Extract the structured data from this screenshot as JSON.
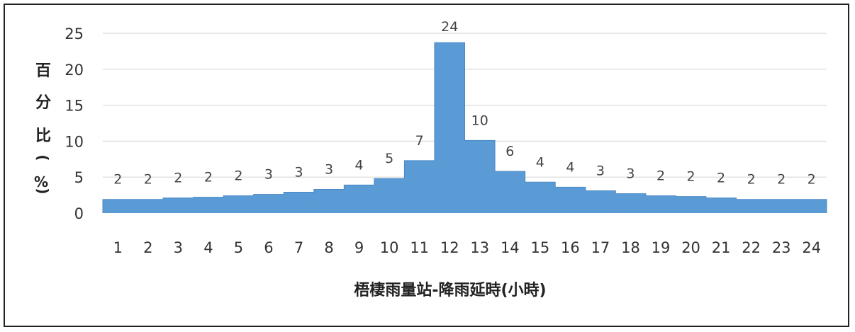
{
  "chart_data": {
    "type": "bar",
    "title": "",
    "xlabel": "梧棲雨量站-降雨延時(小時)",
    "ylabel": "百分比(%)",
    "ylabel_chars": [
      "百",
      "分",
      "比",
      "(",
      "%",
      ")"
    ],
    "categories": [
      "1",
      "2",
      "3",
      "4",
      "5",
      "6",
      "7",
      "8",
      "9",
      "10",
      "11",
      "12",
      "13",
      "14",
      "15",
      "16",
      "17",
      "18",
      "19",
      "20",
      "21",
      "22",
      "23",
      "24"
    ],
    "values": [
      1.9,
      1.9,
      2.1,
      2.2,
      2.4,
      2.6,
      2.9,
      3.3,
      3.9,
      4.8,
      7.3,
      23.7,
      10.1,
      5.8,
      4.3,
      3.6,
      3.1,
      2.7,
      2.4,
      2.3,
      2.1,
      1.9,
      1.9,
      1.9
    ],
    "data_labels": [
      "2",
      "2",
      "2",
      "2",
      "2",
      "3",
      "3",
      "3",
      "4",
      "5",
      "7",
      "24",
      "10",
      "6",
      "4",
      "4",
      "3",
      "3",
      "2",
      "2",
      "2",
      "2",
      "2",
      "2"
    ],
    "yticks": [
      "0",
      "5",
      "10",
      "15",
      "20",
      "25"
    ],
    "ylim": [
      0,
      25
    ],
    "grid": true,
    "legend": "none",
    "bar_color": "#5b9bd5"
  }
}
